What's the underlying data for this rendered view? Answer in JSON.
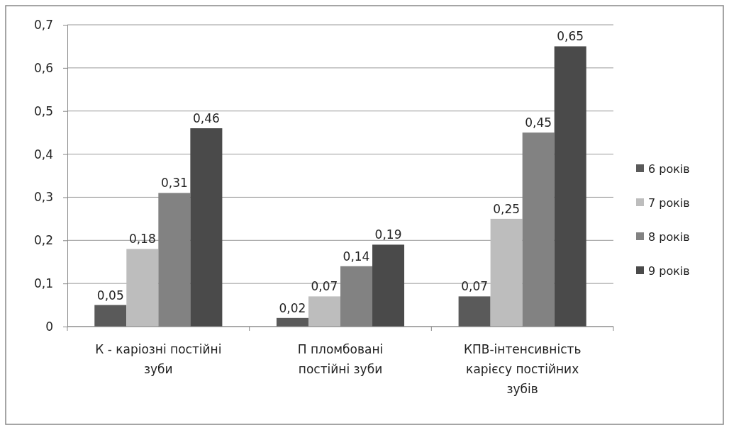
{
  "chart_data": {
    "type": "bar",
    "categories": [
      "К - каріозні постійні зуби",
      "П пломбовані постійні зуби",
      "КПВ-інтенсивність карієсу постійних зубів"
    ],
    "series": [
      {
        "name": "6 років",
        "color": "#5a5a5a",
        "values": [
          0.05,
          0.02,
          0.07
        ]
      },
      {
        "name": "7 років",
        "color": "#bdbdbd",
        "values": [
          0.18,
          0.07,
          0.25
        ]
      },
      {
        "name": "8 років",
        "color": "#828282",
        "values": [
          0.31,
          0.14,
          0.45
        ]
      },
      {
        "name": "9 років",
        "color": "#4a4a4a",
        "values": [
          0.46,
          0.19,
          0.65
        ]
      }
    ],
    "ylim": [
      0,
      0.7
    ],
    "yticks": [
      {
        "value": 0,
        "label": "0"
      },
      {
        "value": 0.1,
        "label": "0,1"
      },
      {
        "value": 0.2,
        "label": "0,2"
      },
      {
        "value": 0.3,
        "label": "0,3"
      },
      {
        "value": 0.4,
        "label": "0,4"
      },
      {
        "value": 0.5,
        "label": "0,5"
      },
      {
        "value": 0.6,
        "label": "0,6"
      },
      {
        "value": 0.7,
        "label": "0,7"
      }
    ],
    "grid": "y",
    "legend": "right",
    "value_labels": [
      [
        "0,05",
        "0,02",
        "0,07"
      ],
      [
        "0,18",
        "0,07",
        "0,25"
      ],
      [
        "0,31",
        "0,14",
        "0,45"
      ],
      [
        "0,46",
        "0,19",
        "0,65"
      ]
    ]
  }
}
